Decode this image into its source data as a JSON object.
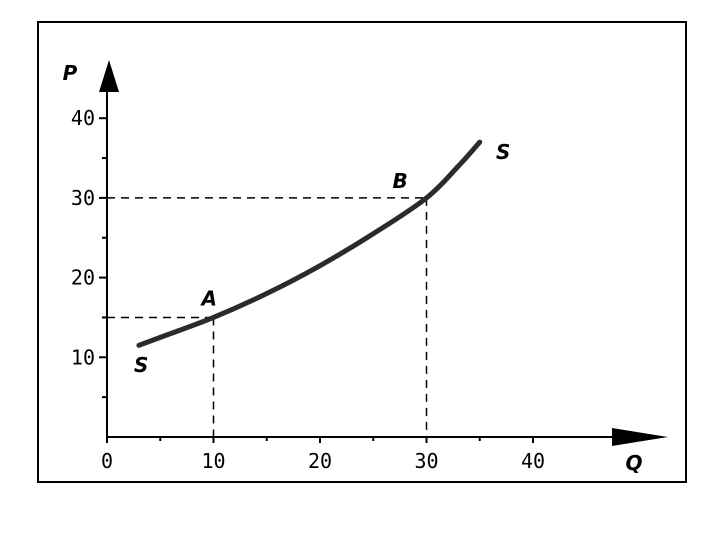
{
  "chart_data": {
    "type": "line",
    "xlabel": "Q",
    "ylabel": "P",
    "xlim": [
      0,
      50
    ],
    "ylim": [
      0,
      45
    ],
    "x_ticks": [
      0,
      10,
      20,
      30,
      40
    ],
    "y_ticks": [
      10,
      20,
      30,
      40
    ],
    "series": [
      {
        "name": "S",
        "x": [
          3,
          5,
          10,
          15,
          20,
          25,
          30,
          33,
          35
        ],
        "y": [
          11.5,
          12.5,
          15,
          18,
          21.5,
          25.5,
          30,
          34,
          37
        ]
      }
    ],
    "curve_label": "S",
    "points": [
      {
        "label": "A",
        "x": 10,
        "y": 15
      },
      {
        "label": "B",
        "x": 30,
        "y": 30
      }
    ],
    "grid": false,
    "legend": "none"
  }
}
